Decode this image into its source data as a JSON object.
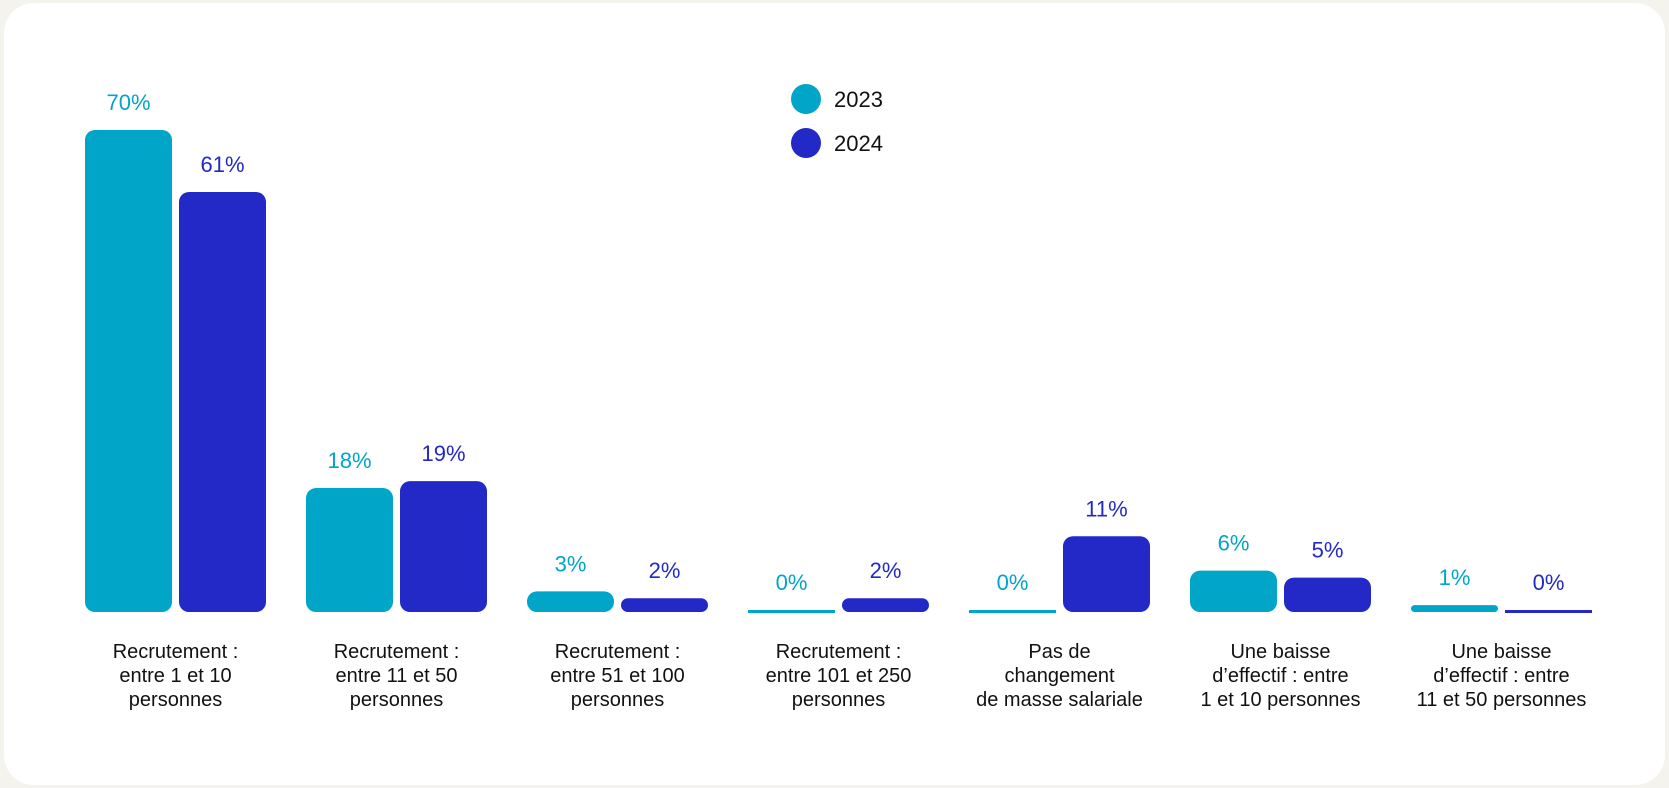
{
  "chart_data": {
    "type": "bar",
    "categories": [
      [
        "Recrutement :",
        "entre 1 et 10",
        "personnes"
      ],
      [
        "Recrutement :",
        "entre 11 et 50",
        "personnes"
      ],
      [
        "Recrutement :",
        "entre 51 et 100",
        "personnes"
      ],
      [
        "Recrutement :",
        "entre 101 et 250",
        "personnes"
      ],
      [
        "Pas de",
        "changement",
        "de masse salariale"
      ],
      [
        "Une baisse",
        "d’effectif : entre",
        "1 et 10 personnes"
      ],
      [
        "Une baisse",
        "d’effectif : entre",
        "11 et 50 personnes"
      ]
    ],
    "series": [
      {
        "name": "2023",
        "color": "#00a5c8",
        "values": [
          70,
          18,
          3,
          0,
          0,
          6,
          1
        ],
        "labels": [
          "70%",
          "18%",
          "3%",
          "0%",
          "0%",
          "6%",
          "1%"
        ]
      },
      {
        "name": "2024",
        "color": "#2229c6",
        "values": [
          61,
          19,
          2,
          2,
          11,
          5,
          0
        ],
        "labels": [
          "61%",
          "19%",
          "2%",
          "2%",
          "11%",
          "5%",
          "0%"
        ]
      }
    ],
    "legend_placement": "top-center",
    "grid": false,
    "ylim": [
      0,
      70
    ]
  }
}
